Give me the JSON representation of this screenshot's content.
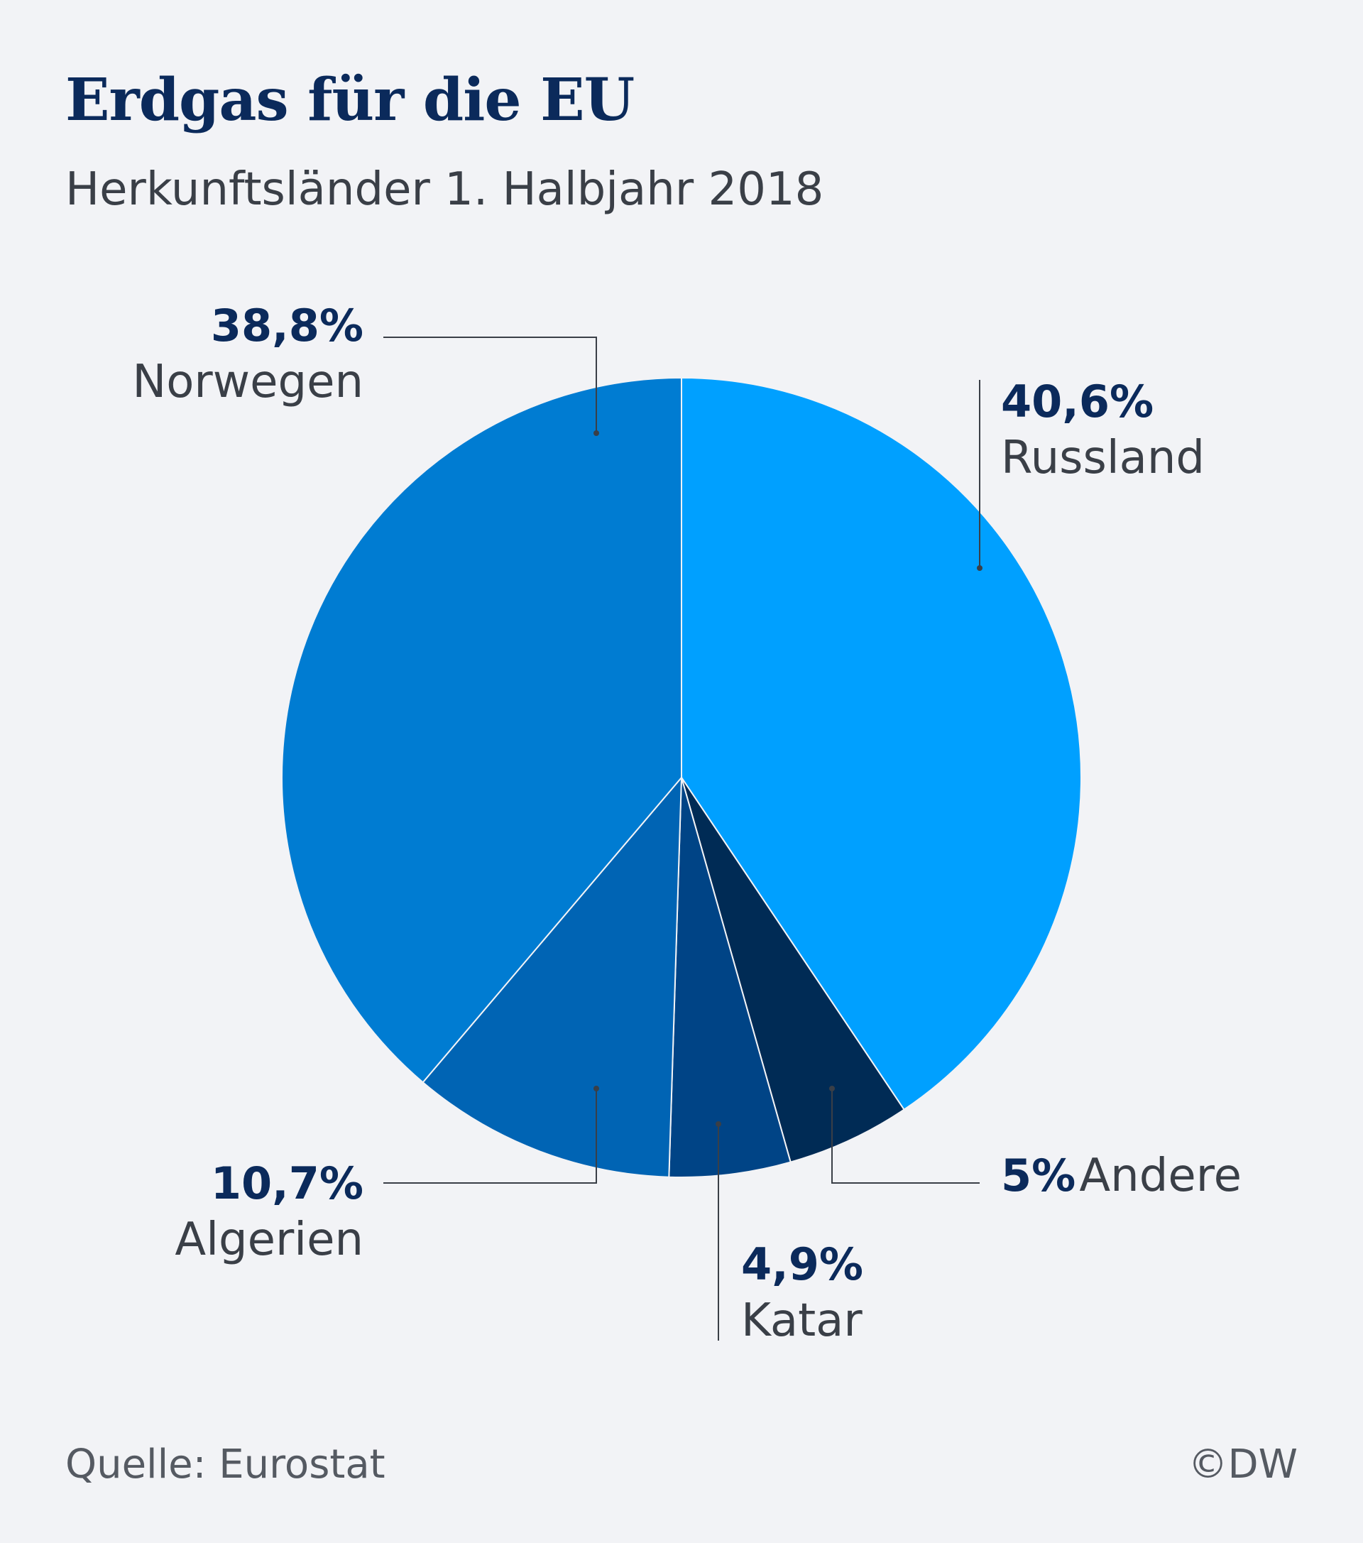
{
  "chart_data": {
    "type": "pie",
    "title": "Erdgas für die EU",
    "subtitle": "Herkunftsländer 1. Halbjahr 2018",
    "slices": [
      {
        "key": "russland",
        "label": "Russland",
        "value": 40.6,
        "value_label": "40,6%",
        "color": "#00a0ff"
      },
      {
        "key": "andere",
        "label": "Andere",
        "value": 5.0,
        "value_label": "5%",
        "color": "#002b55"
      },
      {
        "key": "katar",
        "label": "Katar",
        "value": 4.9,
        "value_label": "4,9%",
        "color": "#004486"
      },
      {
        "key": "algerien",
        "label": "Algerien",
        "value": 10.7,
        "value_label": "10,7%",
        "color": "#0064b4"
      },
      {
        "key": "norwegen",
        "label": "Norwegen",
        "value": 38.8,
        "value_label": "38,8%",
        "color": "#007cd2"
      }
    ]
  },
  "footer": {
    "source": "Quelle: Eurostat",
    "credit": "©DW"
  }
}
